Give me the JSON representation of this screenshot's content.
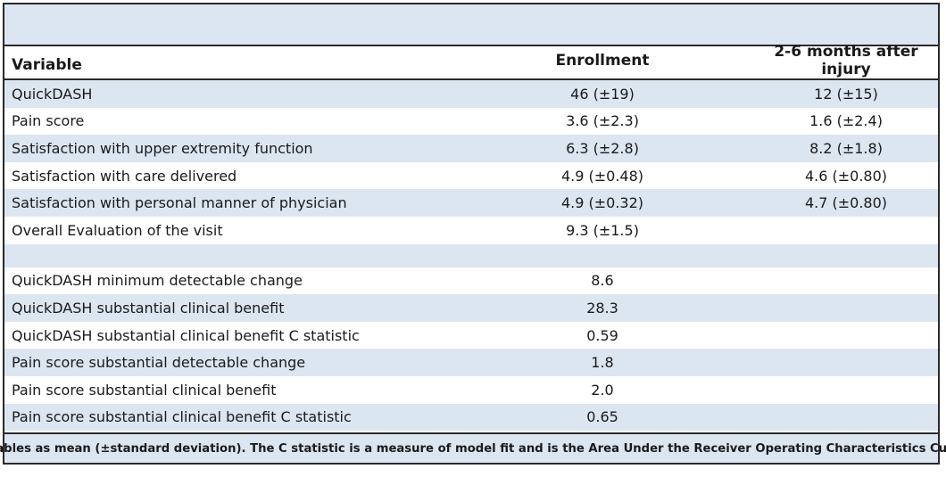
{
  "header": {
    "variable": "Variable",
    "enrollment": "Enrollment",
    "followup": "2-6 months after injury"
  },
  "rows_a": [
    {
      "label": "QuickDASH",
      "enrollment": "46 (±19)",
      "followup": "12 (±15)"
    },
    {
      "label": "Pain score",
      "enrollment": "3.6 (±2.3)",
      "followup": "1.6 (±2.4)"
    },
    {
      "label": "Satisfaction with upper extremity function",
      "enrollment": "6.3 (±2.8)",
      "followup": "8.2 (±1.8)"
    },
    {
      "label": "Satisfaction with care delivered",
      "enrollment": "4.9 (±0.48)",
      "followup": "4.6 (±0.80)"
    },
    {
      "label": "Satisfaction with personal manner of physician",
      "enrollment": "4.9 (±0.32)",
      "followup": "4.7 (±0.80)"
    },
    {
      "label": "Overall Evaluation of the visit",
      "enrollment": "9.3 (±1.5)",
      "followup": ""
    }
  ],
  "rows_b": [
    {
      "label": "QuickDASH minimum detectable change",
      "enrollment": "8.6",
      "followup": ""
    },
    {
      "label": "QuickDASH substantial clinical benefit",
      "enrollment": "28.3",
      "followup": ""
    },
    {
      "label": "QuickDASH substantial clinical benefit C statistic",
      "enrollment": "0.59",
      "followup": ""
    },
    {
      "label": "Pain score substantial detectable change",
      "enrollment": "1.8",
      "followup": ""
    },
    {
      "label": "Pain score substantial clinical benefit",
      "enrollment": "2.0",
      "followup": ""
    },
    {
      "label": "Pain score substantial clinical benefit C statistic",
      "enrollment": "0.65",
      "followup": ""
    }
  ],
  "footnote": "Variables as mean (±standard deviation). The C statistic is a measure of model fit and is the Area Under the Receiver Operating Characteristics Curve."
}
